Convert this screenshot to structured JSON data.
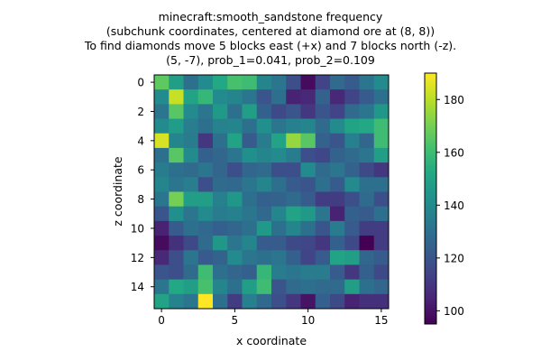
{
  "chart_data": {
    "type": "heatmap",
    "title_lines": [
      "minecraft:smooth_sandstone frequency",
      "(subchunk coordinates, centered at diamond ore at (8, 8))",
      "To find diamonds move 5 blocks east (+x) and 7 blocks north (-z).",
      "(5, -7), prob_1=0.041, prob_2=0.109"
    ],
    "xlabel": "x coordinate",
    "ylabel": "z coordinate",
    "x_ticks": [
      0,
      5,
      10,
      15
    ],
    "y_ticks": [
      0,
      2,
      4,
      6,
      8,
      10,
      12,
      14
    ],
    "colorbar": {
      "min": 95,
      "max": 190,
      "ticks": [
        100,
        120,
        140,
        160,
        180
      ],
      "colormap": "viridis"
    },
    "grid_size": [
      16,
      16
    ],
    "values": [
      [
        166,
        148,
        130,
        140,
        152,
        162,
        160,
        138,
        132,
        118,
        98,
        114,
        128,
        122,
        132,
        140
      ],
      [
        140,
        182,
        150,
        158,
        140,
        138,
        132,
        120,
        130,
        104,
        106,
        125,
        106,
        114,
        122,
        130
      ],
      [
        132,
        165,
        140,
        132,
        146,
        130,
        148,
        124,
        116,
        120,
        110,
        120,
        114,
        128,
        132,
        145
      ],
      [
        140,
        147,
        135,
        130,
        137,
        138,
        130,
        142,
        132,
        136,
        138,
        128,
        140,
        150,
        152,
        160
      ],
      [
        184,
        138,
        134,
        110,
        130,
        150,
        122,
        134,
        150,
        175,
        165,
        125,
        120,
        136,
        126,
        160
      ],
      [
        130,
        165,
        140,
        124,
        126,
        132,
        142,
        138,
        140,
        134,
        118,
        115,
        125,
        128,
        132,
        148
      ],
      [
        134,
        130,
        128,
        132,
        126,
        118,
        126,
        128,
        118,
        118,
        140,
        128,
        132,
        125,
        116,
        110
      ],
      [
        138,
        132,
        135,
        118,
        128,
        127,
        132,
        138,
        130,
        122,
        120,
        130,
        122,
        140,
        130,
        130
      ],
      [
        132,
        170,
        148,
        148,
        136,
        145,
        130,
        124,
        125,
        128,
        122,
        112,
        112,
        118,
        128,
        118
      ],
      [
        120,
        142,
        132,
        140,
        134,
        136,
        132,
        127,
        138,
        150,
        146,
        132,
        104,
        124,
        122,
        130
      ],
      [
        104,
        122,
        130,
        127,
        124,
        126,
        130,
        146,
        130,
        138,
        130,
        120,
        134,
        122,
        112,
        112
      ],
      [
        98,
        108,
        116,
        128,
        145,
        132,
        138,
        122,
        122,
        116,
        115,
        110,
        124,
        116,
        95,
        112
      ],
      [
        106,
        118,
        132,
        122,
        125,
        140,
        132,
        130,
        132,
        124,
        114,
        122,
        150,
        148,
        126,
        122
      ],
      [
        120,
        118,
        128,
        160,
        130,
        126,
        124,
        158,
        134,
        132,
        134,
        134,
        122,
        110,
        124,
        116
      ],
      [
        132,
        152,
        148,
        162,
        138,
        130,
        148,
        160,
        120,
        128,
        130,
        128,
        128,
        148,
        130,
        126
      ],
      [
        150,
        137,
        132,
        190,
        130,
        112,
        136,
        127,
        118,
        110,
        100,
        124,
        116,
        104,
        108,
        108
      ]
    ]
  }
}
